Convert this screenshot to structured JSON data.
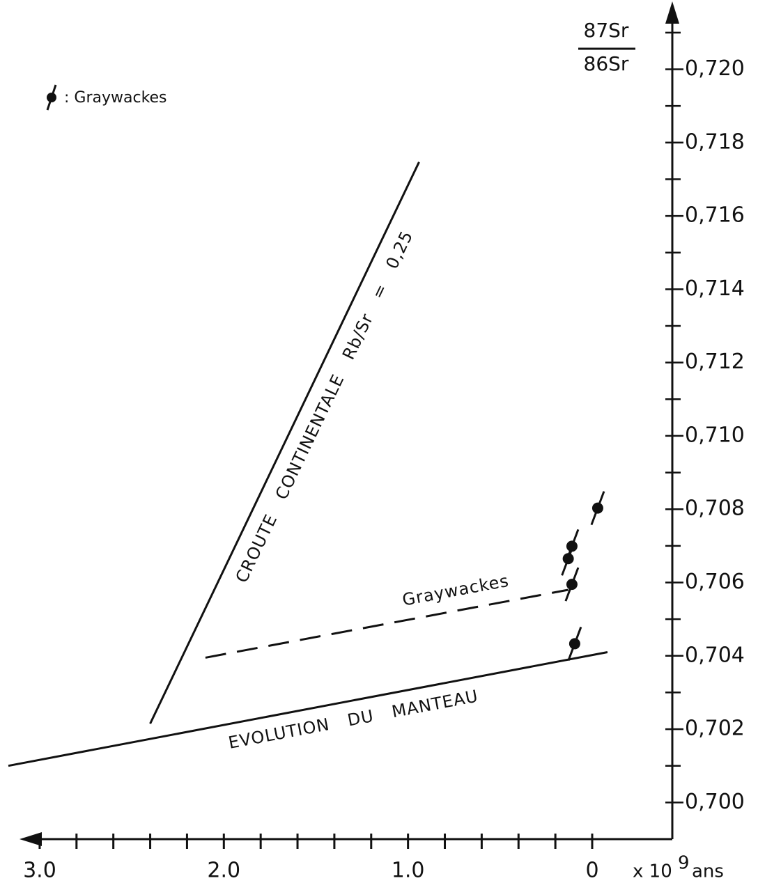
{
  "chart_data": {
    "type": "line",
    "y_label": {
      "numerator": "87Sr",
      "denominator": "86Sr"
    },
    "x_label": {
      "text": "x 10",
      "exponent": "9",
      "unit": "ans"
    },
    "legend": ": Graywackes",
    "xlim": [
      3.17,
      -0.435
    ],
    "ylim": [
      0.699,
      0.7217
    ],
    "xticks": [
      {
        "value": 3,
        "label": "3.0"
      },
      {
        "value": 2,
        "label": "2.0"
      },
      {
        "value": 1,
        "label": "1.0"
      },
      0
    ],
    "xticks_minor": [
      2.8,
      2.6,
      2.4,
      2.2,
      1.8,
      1.6,
      1.4,
      1.2,
      0.8,
      0.6,
      0.4,
      0.2
    ],
    "yticks": [
      {
        "value": 0.7,
        "label": "0,700"
      },
      {
        "value": 0.702,
        "label": "0,702"
      },
      {
        "value": 0.704,
        "label": "0,704"
      },
      {
        "value": 0.706,
        "label": "0,706"
      },
      {
        "value": 0.708,
        "label": "0,708"
      },
      {
        "value": 0.71,
        "label": "0,710"
      },
      {
        "value": 0.712,
        "label": "0,712"
      },
      {
        "value": 0.714,
        "label": "0,714"
      },
      {
        "value": 0.716,
        "label": "0,716"
      },
      {
        "value": 0.718,
        "label": "0,718"
      },
      {
        "value": 0.72,
        "label": "0,720"
      }
    ],
    "yticks_minor": [
      0.701,
      0.703,
      0.705,
      0.707,
      0.709,
      0.711,
      0.713,
      0.715,
      0.717,
      0.719,
      0.721
    ],
    "series": [
      {
        "name": "EVOLUTION DU MANTEAU",
        "style": "solid",
        "color": "#111",
        "x": [
          3.17,
          -0.083
        ],
        "values": [
          0.701,
          0.7041
        ]
      },
      {
        "name": "Graywackes",
        "style": "dashed",
        "color": "#111",
        "x": [
          2.1,
          0.13
        ],
        "values": [
          0.70395,
          0.7058
        ]
      },
      {
        "name": "CROUTE CONTINENTALE Rb/Sr = 0,25",
        "style": "solid",
        "color": "#111",
        "x": [
          2.4,
          0.94
        ],
        "values": [
          0.70215,
          0.71747
        ]
      },
      {
        "style": "points",
        "color": "#111",
        "x": [
          -0.03,
          0.11,
          0.13,
          0.11,
          0.095
        ],
        "values": [
          0.70803,
          0.70699,
          0.70665,
          0.70595,
          0.70433
        ]
      }
    ]
  }
}
